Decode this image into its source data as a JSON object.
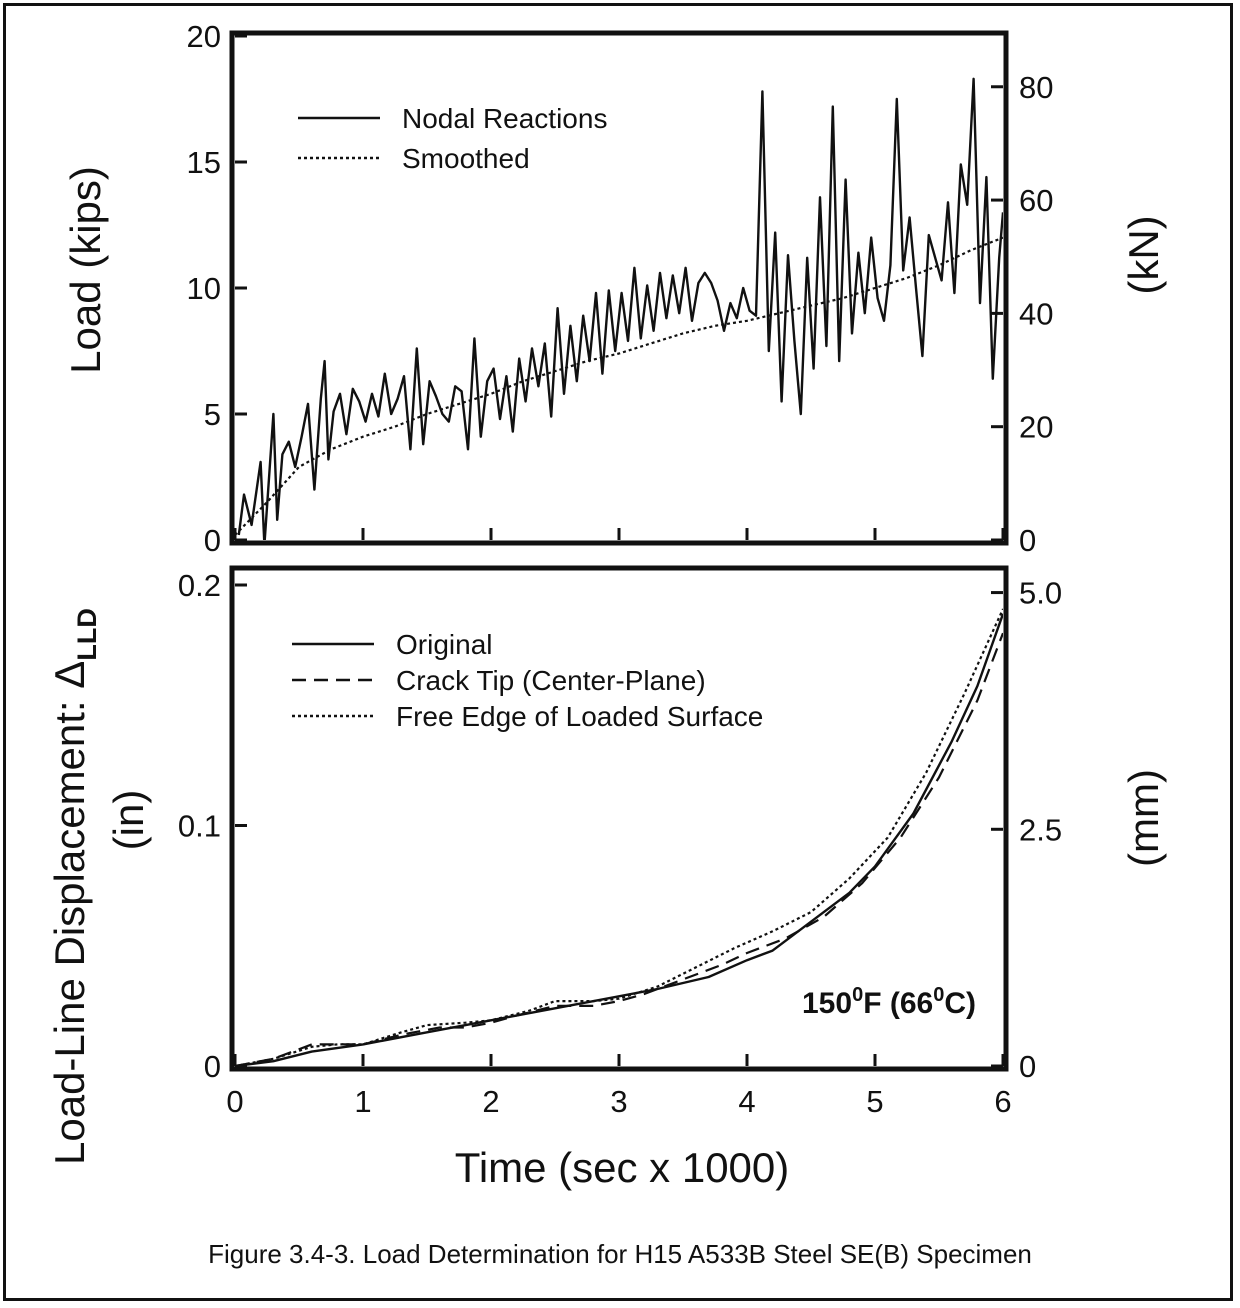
{
  "chart_data": [
    {
      "type": "line",
      "title": "",
      "xlabel": "",
      "ylabel": "Load (kips)",
      "ylabel_right": "(kN)",
      "xlim": [
        0,
        6
      ],
      "ylim": [
        0,
        20
      ],
      "ylim_right": [
        0,
        88.96
      ],
      "yticks": [
        "0",
        "5",
        "10",
        "15",
        "20"
      ],
      "yticks_right": [
        "0",
        "20",
        "40",
        "60",
        "80"
      ],
      "legend_position": "top-left",
      "series": [
        {
          "name": "Nodal Reactions",
          "style": "solid",
          "x": [
            0.03,
            0.07,
            0.13,
            0.2,
            0.23,
            0.27,
            0.3,
            0.33,
            0.37,
            0.42,
            0.47,
            0.52,
            0.57,
            0.62,
            0.67,
            0.7,
            0.73,
            0.77,
            0.82,
            0.87,
            0.92,
            0.97,
            1.02,
            1.07,
            1.12,
            1.17,
            1.22,
            1.27,
            1.32,
            1.37,
            1.42,
            1.47,
            1.52,
            1.57,
            1.62,
            1.67,
            1.72,
            1.77,
            1.82,
            1.87,
            1.92,
            1.97,
            2.02,
            2.07,
            2.12,
            2.17,
            2.22,
            2.27,
            2.32,
            2.37,
            2.42,
            2.47,
            2.52,
            2.57,
            2.62,
            2.67,
            2.72,
            2.77,
            2.82,
            2.87,
            2.92,
            2.97,
            3.02,
            3.07,
            3.12,
            3.17,
            3.22,
            3.27,
            3.32,
            3.37,
            3.42,
            3.47,
            3.52,
            3.57,
            3.62,
            3.67,
            3.72,
            3.77,
            3.82,
            3.87,
            3.92,
            3.97,
            4.02,
            4.07,
            4.12,
            4.17,
            4.22,
            4.27,
            4.32,
            4.37,
            4.42,
            4.47,
            4.52,
            4.57,
            4.62,
            4.67,
            4.72,
            4.77,
            4.82,
            4.87,
            4.92,
            4.97,
            5.02,
            5.07,
            5.12,
            5.17,
            5.22,
            5.27,
            5.32,
            5.37,
            5.42,
            5.47,
            5.52,
            5.57,
            5.62,
            5.67,
            5.72,
            5.77,
            5.82,
            5.87,
            5.92,
            5.97,
            6.0
          ],
          "values": [
            0.2,
            1.8,
            0.6,
            3.1,
            -0.2,
            2.8,
            5.0,
            0.8,
            3.4,
            3.9,
            2.9,
            4.1,
            5.4,
            2.0,
            5.6,
            7.1,
            3.2,
            5.1,
            5.8,
            4.2,
            6.0,
            5.5,
            4.7,
            5.8,
            4.9,
            6.6,
            5.0,
            5.6,
            6.5,
            3.6,
            7.6,
            3.8,
            6.3,
            5.7,
            5.0,
            4.7,
            6.1,
            5.9,
            3.6,
            8.0,
            4.1,
            6.3,
            6.8,
            4.8,
            6.5,
            4.3,
            7.2,
            5.5,
            7.6,
            6.1,
            7.8,
            4.9,
            9.2,
            5.8,
            8.5,
            6.3,
            8.9,
            7.1,
            9.8,
            6.6,
            9.9,
            7.5,
            9.8,
            7.9,
            10.8,
            8.0,
            10.1,
            8.3,
            10.6,
            8.8,
            10.5,
            9.0,
            10.8,
            8.7,
            10.2,
            10.6,
            10.2,
            9.5,
            8.3,
            9.4,
            8.8,
            10.0,
            9.1,
            8.9,
            17.8,
            7.5,
            12.2,
            5.5,
            11.3,
            7.9,
            5.0,
            11.2,
            6.8,
            13.6,
            7.7,
            17.2,
            7.1,
            14.3,
            8.2,
            11.4,
            9.0,
            12.0,
            9.6,
            8.7,
            10.9,
            17.5,
            10.7,
            12.8,
            10.0,
            7.3,
            12.1,
            11.2,
            10.3,
            13.4,
            9.8,
            14.9,
            13.3,
            18.3,
            9.4,
            14.4,
            6.4,
            11.2,
            13.0
          ]
        },
        {
          "name": "Smoothed",
          "style": "dotted",
          "x": [
            0.0,
            0.25,
            0.5,
            0.75,
            1.0,
            1.25,
            1.5,
            1.75,
            2.0,
            2.25,
            2.5,
            2.75,
            3.0,
            3.25,
            3.5,
            3.75,
            4.0,
            4.25,
            4.5,
            4.75,
            5.0,
            5.25,
            5.5,
            5.75,
            6.0
          ],
          "values": [
            0.2,
            1.5,
            2.9,
            3.6,
            4.1,
            4.5,
            5.0,
            5.4,
            5.8,
            6.3,
            6.7,
            7.1,
            7.4,
            7.8,
            8.2,
            8.5,
            8.7,
            9.0,
            9.3,
            9.6,
            10.0,
            10.4,
            10.9,
            11.5,
            12.0
          ]
        }
      ]
    },
    {
      "type": "line",
      "title": "",
      "xlabel": "Time (sec x 1000)",
      "ylabel_main": "Load-Line Displacement: Δ",
      "ylabel_subscript": "LLD",
      "ylabel_unit": "(in)",
      "ylabel_right": "(mm)",
      "xlim": [
        0,
        6
      ],
      "ylim": [
        0,
        0.2
      ],
      "ylim_right": [
        0,
        5.08
      ],
      "xticks": [
        "0",
        "1",
        "2",
        "3",
        "4",
        "5",
        "6"
      ],
      "yticks": [
        "0",
        "0.1",
        "0.2"
      ],
      "yticks_right": [
        "0",
        "2.5",
        "5.0"
      ],
      "legend_position": "top-left",
      "annotation": {
        "base1": "150",
        "sup1": "0",
        "mid": "F (66",
        "sup2": "0",
        "end": "C)"
      },
      "series": [
        {
          "name": "Original",
          "style": "solid",
          "x": [
            0.0,
            0.3,
            0.6,
            1.0,
            1.5,
            2.0,
            2.5,
            3.0,
            3.3,
            3.7,
            4.0,
            4.2,
            4.5,
            4.8,
            5.0,
            5.3,
            5.6,
            5.8,
            6.0
          ],
          "values": [
            0.0,
            0.002,
            0.006,
            0.009,
            0.014,
            0.019,
            0.024,
            0.029,
            0.032,
            0.037,
            0.044,
            0.048,
            0.06,
            0.072,
            0.083,
            0.105,
            0.135,
            0.158,
            0.188
          ]
        },
        {
          "name": "Crack Tip (Center-Plane)",
          "style": "dashed",
          "x": [
            0.0,
            0.3,
            0.6,
            0.8,
            1.0,
            1.3,
            1.6,
            1.8,
            2.0,
            2.2,
            2.5,
            2.8,
            3.0,
            3.2,
            3.5,
            3.8,
            4.0,
            4.3,
            4.6,
            4.9,
            5.2,
            5.5,
            5.8,
            6.0
          ],
          "values": [
            0.0,
            0.003,
            0.009,
            0.009,
            0.009,
            0.013,
            0.016,
            0.016,
            0.018,
            0.021,
            0.025,
            0.025,
            0.027,
            0.03,
            0.036,
            0.042,
            0.047,
            0.053,
            0.062,
            0.076,
            0.095,
            0.12,
            0.152,
            0.18
          ]
        },
        {
          "name": "Free Edge of Loaded Surface",
          "style": "dotted",
          "x": [
            0.0,
            0.3,
            0.6,
            0.8,
            1.0,
            1.3,
            1.5,
            1.8,
            2.0,
            2.3,
            2.5,
            2.8,
            3.0,
            3.3,
            3.6,
            3.9,
            4.2,
            4.5,
            4.8,
            5.1,
            5.4,
            5.7,
            6.0
          ],
          "values": [
            0.0,
            0.003,
            0.008,
            0.009,
            0.009,
            0.014,
            0.017,
            0.018,
            0.019,
            0.023,
            0.027,
            0.027,
            0.028,
            0.033,
            0.041,
            0.049,
            0.056,
            0.064,
            0.078,
            0.095,
            0.122,
            0.155,
            0.19
          ]
        }
      ]
    }
  ],
  "caption": "Figure 3.4-3. Load Determination for H15 A533B Steel SE(B) Specimen"
}
